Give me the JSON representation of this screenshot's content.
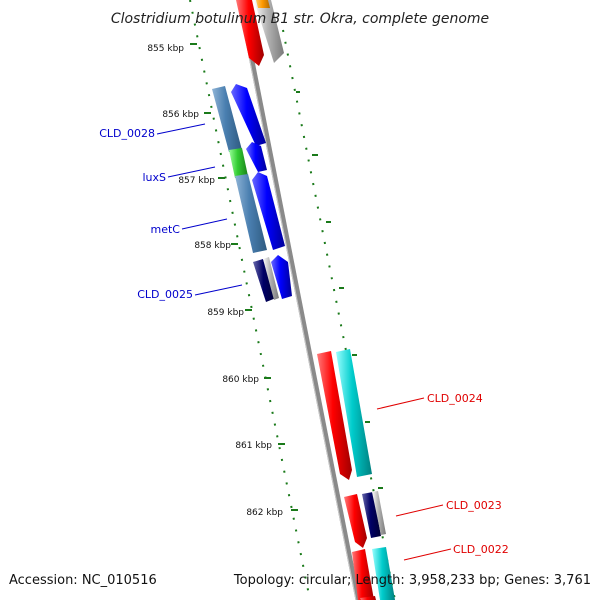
{
  "title": "Clostridium botulinum B1 str. Okra, complete genome",
  "footer": {
    "accession": "Accession: NC_010516",
    "summary": "Topology: circular; Length: 3,958,233 bp; Genes: 3,761"
  },
  "ruler": [
    {
      "label": "855 kbp"
    },
    {
      "label": "856 kbp"
    },
    {
      "label": "857 kbp"
    },
    {
      "label": "858 kbp"
    },
    {
      "label": "859 kbp"
    },
    {
      "label": "860 kbp"
    },
    {
      "label": "861 kbp"
    },
    {
      "label": "862 kbp"
    }
  ],
  "gene_labels": {
    "cld_0028": "CLD_0028",
    "luxs": "luxS",
    "metc": "metC",
    "cld_0025": "CLD_0025",
    "cld_0024": "CLD_0024",
    "cld_0023": "CLD_0023",
    "cld_0022": "CLD_0022"
  },
  "colors": {
    "forward_label": "#0000cc",
    "reverse_label": "#e00000",
    "tick": "#1a7a1a",
    "backbone": "#888888",
    "cds_forward": "#0000ff",
    "cds_reverse": "#ff0000",
    "cog_steel": "#4a7fb0",
    "cog_green": "#33cc33",
    "cog_navy": "#000066",
    "cog_cyan": "#00cccc",
    "cog_gray": "#b3b3b3",
    "cog_orange": "#ff9900"
  }
}
